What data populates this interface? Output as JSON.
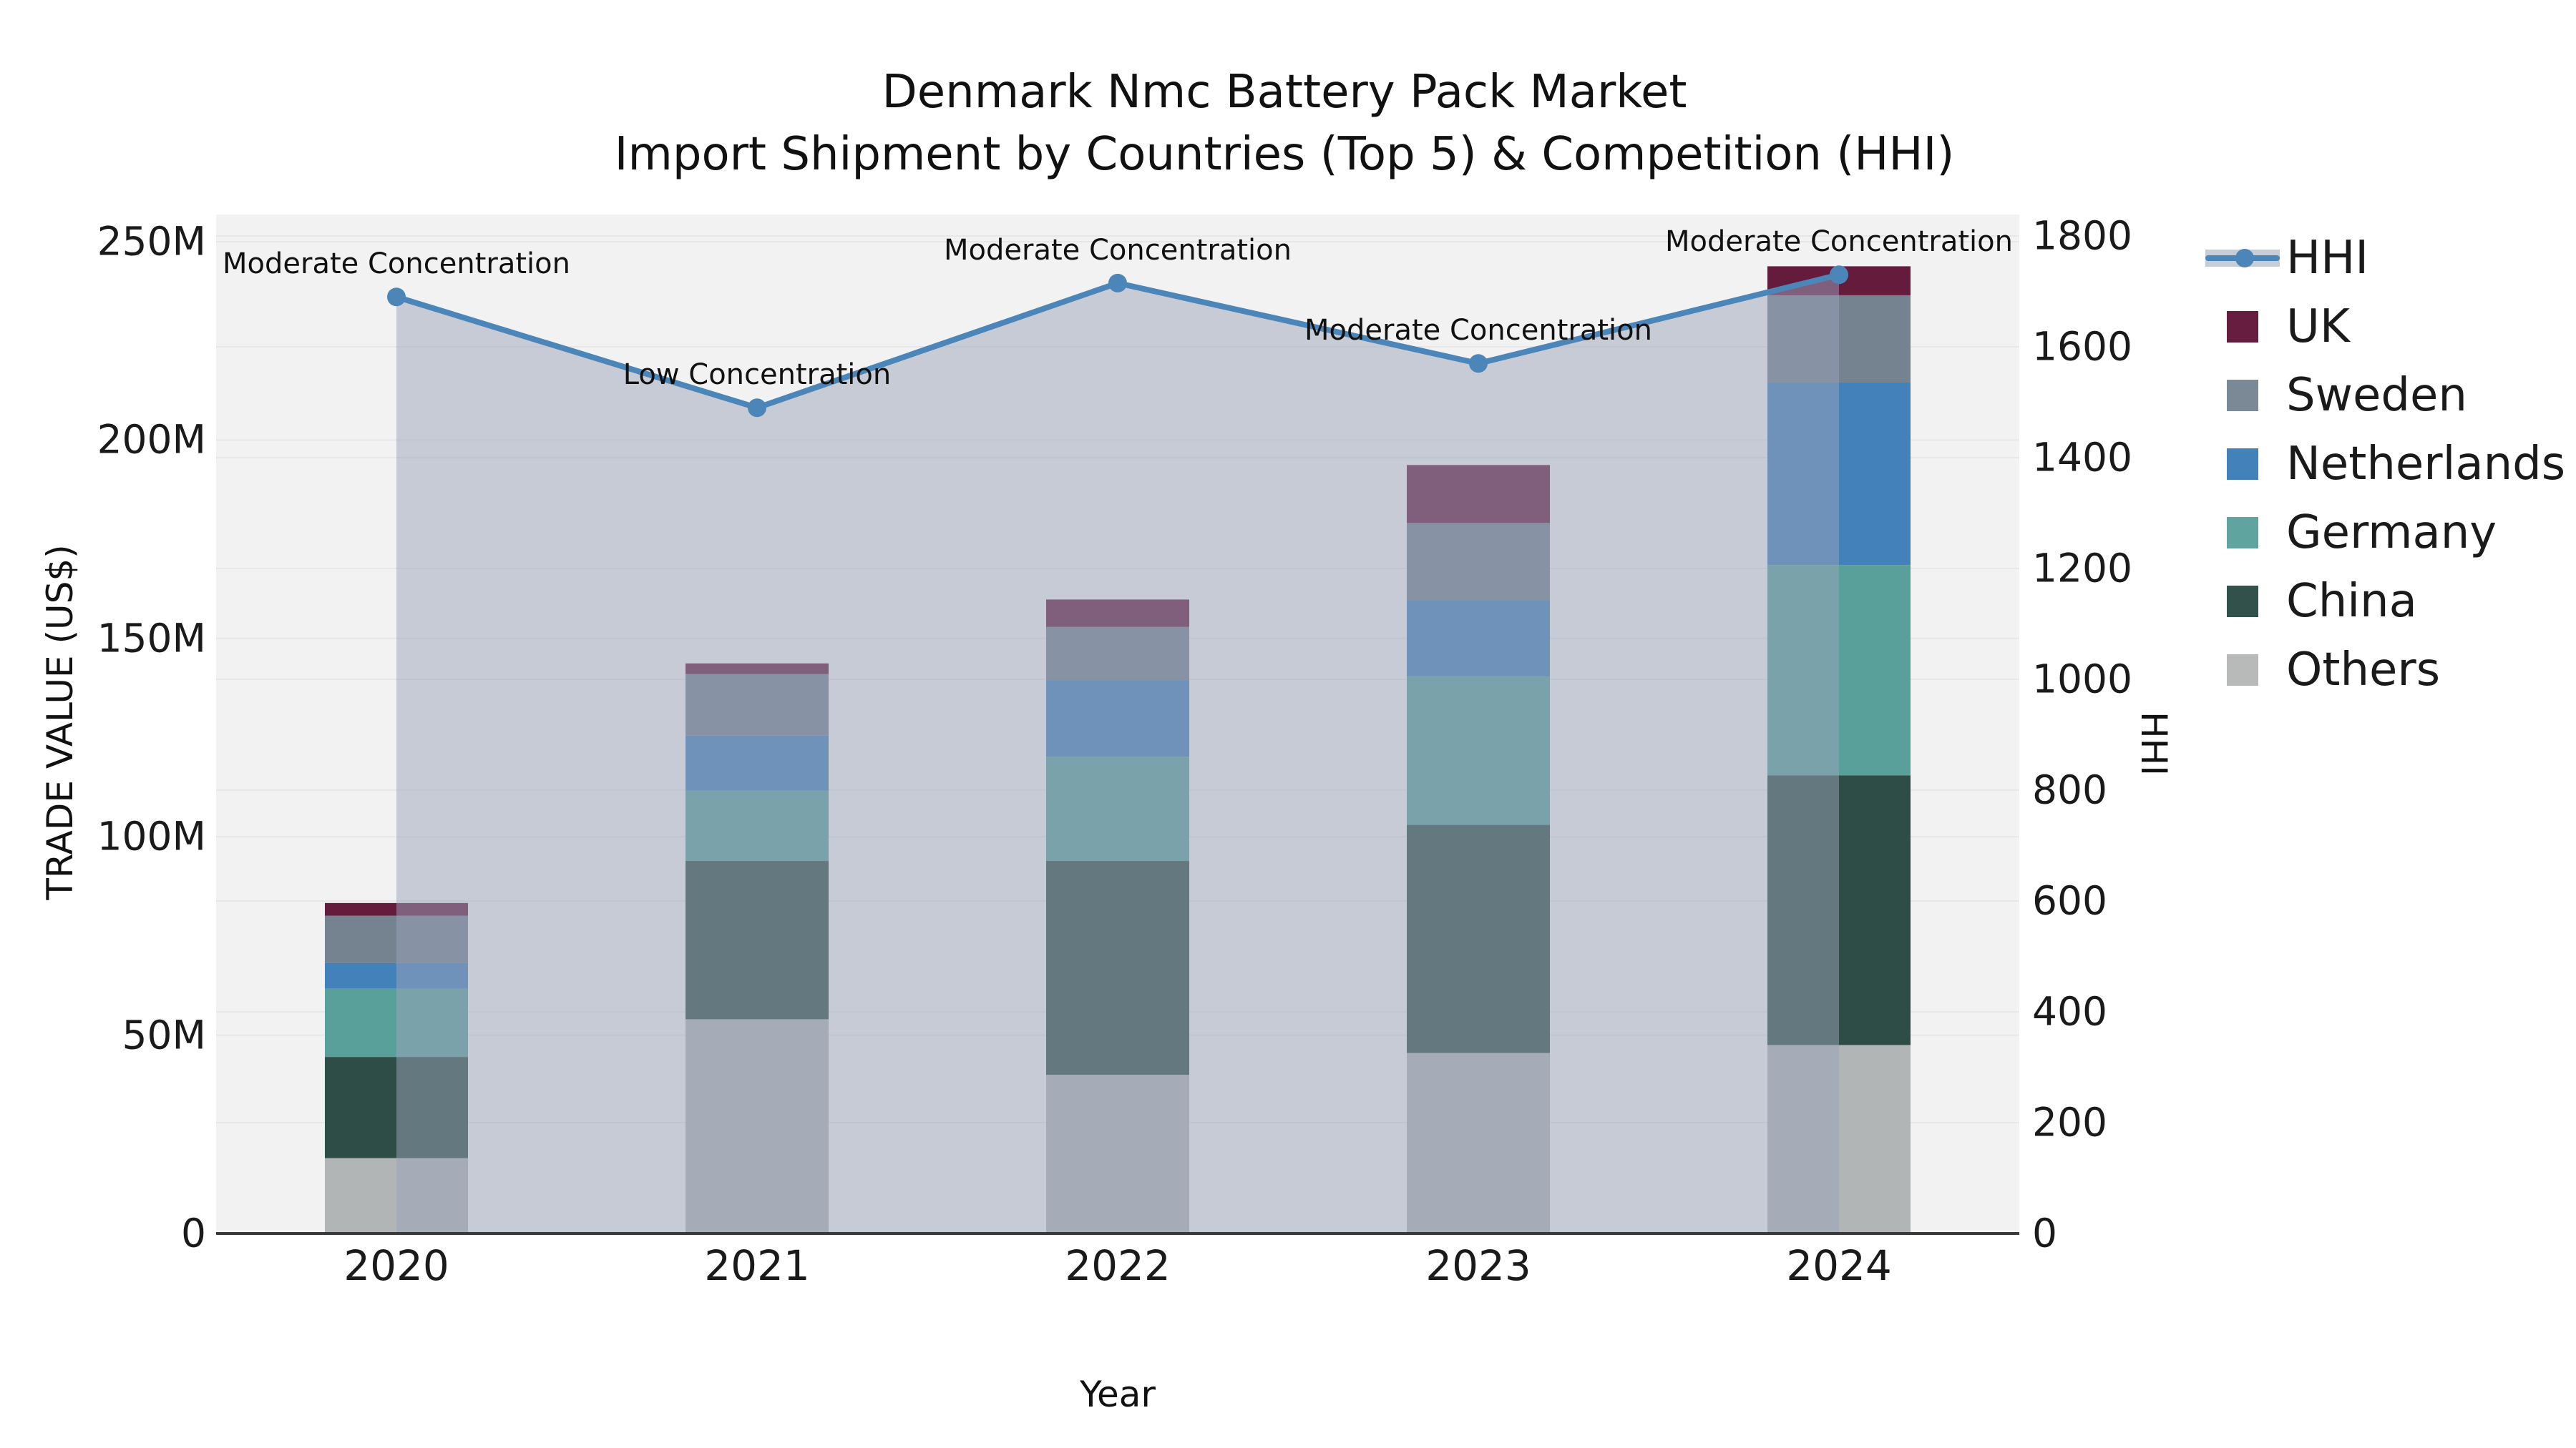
{
  "title": {
    "line1": "Denmark Nmc Battery Pack Market",
    "line2": "Import Shipment by Countries (Top 5) & Competition (HHI)"
  },
  "axes": {
    "x_label": "Year",
    "y_left_label": "TRADE VALUE (US$)",
    "y_right_label": "HHI",
    "y_left_ticks": [
      "0",
      "50M",
      "100M",
      "150M",
      "200M",
      "250M"
    ],
    "y_right_ticks": [
      "0",
      "200",
      "400",
      "600",
      "800",
      "1000",
      "1200",
      "1400",
      "1600",
      "1800"
    ]
  },
  "chart_data": {
    "type": "stacked-bar+line",
    "title": "Denmark Nmc Battery Pack Market — Import Shipment by Countries (Top 5) & Competition (HHI)",
    "xlabel": "Year",
    "ylabel_left": "TRADE VALUE (US$)",
    "ylabel_right": "HHI",
    "ylim_left_millions": [
      0,
      250
    ],
    "ylim_right": [
      0,
      1800
    ],
    "grid": true,
    "legend_position": "right",
    "categories": [
      "2020",
      "2021",
      "2022",
      "2023",
      "2024"
    ],
    "bar_unit": "million US$",
    "series": [
      {
        "name": "Others",
        "color": "#b2b5b5",
        "values": [
          19.0,
          54.0,
          40.0,
          45.5,
          47.5
        ]
      },
      {
        "name": "China",
        "color": "#2e4d47",
        "values": [
          25.5,
          39.9,
          53.9,
          57.5,
          68.0
        ]
      },
      {
        "name": "Germany",
        "color": "#59a09b",
        "values": [
          17.2,
          17.7,
          26.3,
          37.5,
          53.0
        ]
      },
      {
        "name": "Netherlands",
        "color": "#4381bb",
        "values": [
          6.5,
          13.9,
          19.3,
          19.1,
          46.0
        ]
      },
      {
        "name": "Sweden",
        "color": "#75828f",
        "values": [
          11.9,
          15.5,
          13.4,
          19.5,
          22.0
        ]
      },
      {
        "name": "UK",
        "color": "#641b3c",
        "values": [
          3.2,
          2.7,
          6.9,
          14.6,
          7.3
        ]
      }
    ],
    "bar_totals_millions": [
      83.3,
      143.7,
      159.8,
      193.7,
      243.8
    ],
    "line_series": {
      "name": "HHI",
      "color": "#4c86b8",
      "area_fill": "rgba(154,164,186,0.5)",
      "values": [
        1690,
        1490,
        1715,
        1570,
        1730
      ]
    },
    "annotations": [
      {
        "category": "2020",
        "text": "Moderate Concentration"
      },
      {
        "category": "2021",
        "text": "Low Concentration"
      },
      {
        "category": "2022",
        "text": "Moderate Concentration"
      },
      {
        "category": "2023",
        "text": "Moderate Concentration"
      },
      {
        "category": "2024",
        "text": "Moderate Concentration"
      }
    ]
  },
  "legend": {
    "items": [
      {
        "label": "HHI",
        "type": "line",
        "color": "#4c86b8"
      },
      {
        "label": "UK",
        "type": "swatch",
        "color": "#671d40"
      },
      {
        "label": "Sweden",
        "type": "swatch",
        "color": "#7b8997"
      },
      {
        "label": "Netherlands",
        "type": "swatch",
        "color": "#4381bb"
      },
      {
        "label": "Germany",
        "type": "swatch",
        "color": "#5fa49f"
      },
      {
        "label": "China",
        "type": "swatch",
        "color": "#32514b"
      },
      {
        "label": "Others",
        "type": "swatch",
        "color": "#b8baba"
      }
    ]
  },
  "style": {
    "plot_bg": "#f2f2f3",
    "gridline": "#e7e7ea",
    "axis_line": "#3a3a3a",
    "text": "#1a1a1a"
  }
}
